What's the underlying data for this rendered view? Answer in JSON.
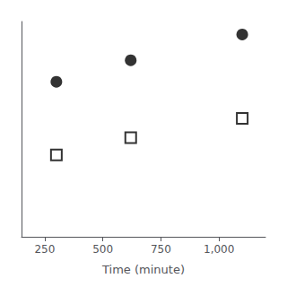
{
  "chart_data": {
    "type": "scatter",
    "xlabel": "Time (minute)",
    "xlim": [
      150,
      1200
    ],
    "xticks": [
      250,
      500,
      750,
      1000
    ],
    "ylim": [
      0,
      1
    ],
    "tick_labels": "x",
    "grid": false,
    "series": [
      {
        "marker": "square_open",
        "color": "black",
        "x": [
          300,
          620,
          1100
        ],
        "values": [
          0.38,
          0.46,
          0.55
        ]
      },
      {
        "marker": "circle",
        "color": "black",
        "x": [
          300,
          620,
          1100
        ],
        "values": [
          0.72,
          0.82,
          0.94
        ]
      }
    ]
  }
}
